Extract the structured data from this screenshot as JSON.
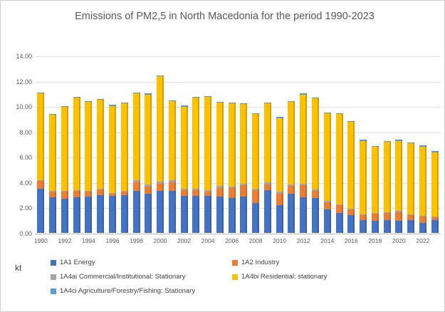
{
  "title": "Emissions of PM2,5 in North Macedonia for the period 1990-2023",
  "unit_label": "kt",
  "chart_data": {
    "type": "bar",
    "stacked": true,
    "title": "Emissions of PM2,5 in North Macedonia for the period 1990-2023",
    "ylabel": "kt",
    "ylim": [
      0,
      14
    ],
    "ytick_step": 2,
    "ytick_labels": [
      "0.00",
      "2.00",
      "4.00",
      "6.00",
      "8.00",
      "10.00",
      "12.00",
      "14.00"
    ],
    "grid": true,
    "legend_position": "bottom",
    "categories": [
      1990,
      1991,
      1992,
      1993,
      1994,
      1995,
      1996,
      1997,
      1998,
      1999,
      2000,
      2001,
      2002,
      2003,
      2004,
      2005,
      2006,
      2007,
      2008,
      2009,
      2010,
      2011,
      2012,
      2013,
      2014,
      2015,
      2016,
      2017,
      2018,
      2019,
      2020,
      2021,
      2022,
      2023
    ],
    "xtick_labels": [
      "1990",
      "1992",
      "1994",
      "1996",
      "1998",
      "2000",
      "2002",
      "2004",
      "2006",
      "2008",
      "2010",
      "2012",
      "2014",
      "2016",
      "2018",
      "2020",
      "2022"
    ],
    "series": [
      {
        "name": "1A1 Energy",
        "color": "#4472C4",
        "values": [
          3.5,
          2.8,
          2.7,
          2.8,
          2.85,
          3.0,
          2.9,
          3.0,
          3.3,
          3.1,
          3.3,
          3.3,
          2.95,
          2.9,
          2.9,
          2.85,
          2.75,
          2.85,
          2.35,
          3.35,
          2.2,
          3.1,
          2.8,
          2.75,
          1.85,
          1.6,
          1.38,
          1.0,
          0.94,
          1.0,
          0.94,
          1.04,
          0.81,
          1.0
        ]
      },
      {
        "name": "1A2 Industry",
        "color": "#ED7D31",
        "values": [
          0.6,
          0.45,
          0.55,
          0.5,
          0.4,
          0.45,
          0.2,
          0.25,
          0.7,
          0.55,
          0.6,
          0.7,
          0.4,
          0.45,
          0.35,
          0.7,
          0.8,
          0.9,
          1.0,
          0.5,
          0.9,
          0.6,
          0.95,
          0.55,
          0.57,
          0.57,
          0.47,
          0.38,
          0.59,
          0.6,
          0.72,
          0.38,
          0.47,
          0.24
        ]
      },
      {
        "name": "1A4ai Commercial/Institutional: Stationary",
        "color": "#A5A5A5",
        "values": [
          0.05,
          0.05,
          0.05,
          0.05,
          0.05,
          0.05,
          0.05,
          0.05,
          0.15,
          0.2,
          0.15,
          0.15,
          0.15,
          0.15,
          0.15,
          0.15,
          0.1,
          0.15,
          0.15,
          0.15,
          0.15,
          0.15,
          0.15,
          0.12,
          0.1,
          0.1,
          0.08,
          0.08,
          0.06,
          0.06,
          0.06,
          0.06,
          0.06,
          0.05
        ]
      },
      {
        "name": "1A4bi Residential: stationary",
        "color": "#FFC000",
        "values": [
          6.88,
          6.03,
          6.63,
          7.33,
          7.03,
          7.03,
          6.88,
          6.93,
          6.88,
          7.08,
          8.33,
          6.23,
          6.48,
          7.18,
          7.33,
          6.58,
          6.58,
          6.28,
          5.88,
          6.23,
          5.83,
          6.48,
          7.03,
          7.21,
          6.91,
          7.11,
          6.85,
          5.82,
          5.19,
          5.52,
          5.56,
          5.6,
          5.49,
          5.09
        ]
      },
      {
        "name": "1A4ci Agriculture/Forestry/Fishing: Stationary",
        "color": "#5B9BD5",
        "values": [
          0.07,
          0.07,
          0.07,
          0.07,
          0.07,
          0.07,
          0.07,
          0.07,
          0.07,
          0.07,
          0.07,
          0.07,
          0.07,
          0.07,
          0.07,
          0.07,
          0.07,
          0.07,
          0.07,
          0.07,
          0.07,
          0.07,
          0.07,
          0.07,
          0.07,
          0.07,
          0.07,
          0.07,
          0.07,
          0.07,
          0.07,
          0.07,
          0.07,
          0.07
        ]
      }
    ],
    "totals_note": "stacked totals approx: 1990 11.1, 1991 9.4, 1992 10.0, 1993 10.75, 1994 10.4, 1995 10.6, 1996 10.1, 1997 10.3, 1998 11.1, 1999 11.0, 2000 12.45, 2001 10.45, 2002 10.05, 2003 10.75, 2004 10.8, 2005 10.35, 2006 10.3, 2007 10.25, 2008 9.45, 2009 10.3, 2010 9.15, 2011 10.4, 2012 11.0, 2013 10.7, 2014 9.5, 2015 9.45, 2016 8.85, 2017 7.35, 2018 6.85, 2019 7.25, 2020 7.35, 2021 7.15, 2022 6.9, 2023 6.45"
  }
}
